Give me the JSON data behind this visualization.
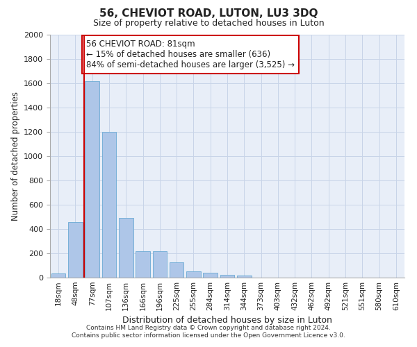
{
  "title": "56, CHEVIOT ROAD, LUTON, LU3 3DQ",
  "subtitle": "Size of property relative to detached houses in Luton",
  "xlabel": "Distribution of detached houses by size in Luton",
  "ylabel": "Number of detached properties",
  "categories": [
    "18sqm",
    "48sqm",
    "77sqm",
    "107sqm",
    "136sqm",
    "166sqm",
    "196sqm",
    "225sqm",
    "255sqm",
    "284sqm",
    "314sqm",
    "344sqm",
    "373sqm",
    "403sqm",
    "432sqm",
    "462sqm",
    "492sqm",
    "521sqm",
    "551sqm",
    "580sqm",
    "610sqm"
  ],
  "values": [
    35,
    455,
    1620,
    1200,
    490,
    215,
    215,
    125,
    50,
    42,
    25,
    18,
    0,
    0,
    0,
    0,
    0,
    0,
    0,
    0,
    0
  ],
  "bar_color": "#aec6e8",
  "bar_edgecolor": "#6aaad4",
  "grid_color": "#c8d4e8",
  "background_color": "#ffffff",
  "plot_background": "#e8eef8",
  "vline_x": 1.5,
  "vline_color": "#cc0000",
  "annotation_text": "56 CHEVIOT ROAD: 81sqm\n← 15% of detached houses are smaller (636)\n84% of semi-detached houses are larger (3,525) →",
  "annotation_box_color": "#cc0000",
  "ylim": [
    0,
    2000
  ],
  "yticks": [
    0,
    200,
    400,
    600,
    800,
    1000,
    1200,
    1400,
    1600,
    1800,
    2000
  ],
  "footer1": "Contains HM Land Registry data © Crown copyright and database right 2024.",
  "footer2": "Contains public sector information licensed under the Open Government Licence v3.0."
}
